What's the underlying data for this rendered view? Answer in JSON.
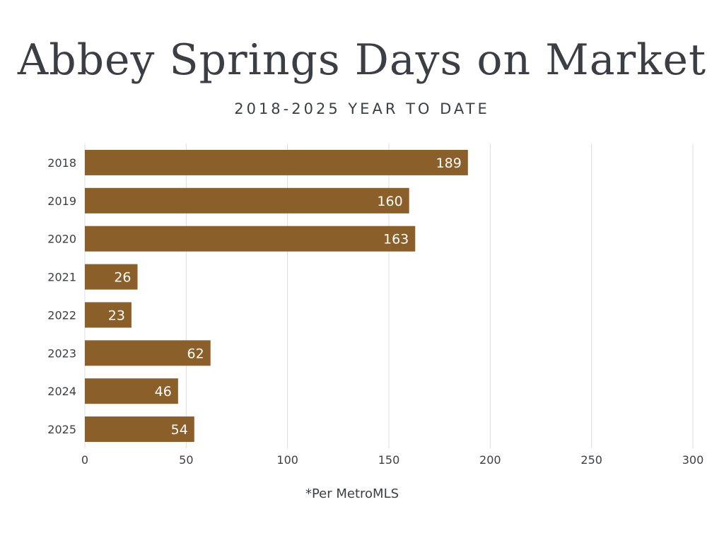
{
  "header": {
    "title": "Abbey Springs Days on Market",
    "subtitle": "2018-2025 YEAR TO DATE"
  },
  "footnote": "*Per MetroMLS",
  "colors": {
    "bar": "#8a5f2a",
    "bar_label": "#ffffff",
    "text": "#3b3f45",
    "grid": "#dcdcdc"
  },
  "chart_data": {
    "type": "bar",
    "orientation": "horizontal",
    "categories": [
      "2018",
      "2019",
      "2020",
      "2021",
      "2022",
      "2023",
      "2024",
      "2025"
    ],
    "values": [
      189,
      160,
      163,
      26,
      23,
      62,
      46,
      54
    ],
    "title": "Abbey Springs Days on Market",
    "subtitle": "2018-2025 YEAR TO DATE",
    "xlim": [
      0,
      300
    ],
    "x_ticks": [
      0,
      50,
      100,
      150,
      200,
      250,
      300
    ],
    "grid": true,
    "legend": "none"
  }
}
